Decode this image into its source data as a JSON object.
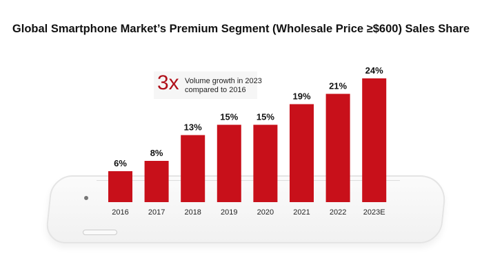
{
  "chart_data": {
    "type": "bar",
    "title": "Global Smartphone Market’s Premium Segment (Wholesale Price ≥$600) Sales Share",
    "categories": [
      "2016",
      "2017",
      "2018",
      "2019",
      "2020",
      "2021",
      "2022",
      "2023E"
    ],
    "values": [
      6,
      8,
      13,
      15,
      15,
      19,
      21,
      24
    ],
    "data_labels": [
      "6%",
      "8%",
      "13%",
      "15%",
      "15%",
      "19%",
      "21%",
      "24%"
    ],
    "unit": "%",
    "ylim": [
      0,
      24
    ],
    "grid": false,
    "bar_color": "#c8101a",
    "annotation": {
      "big": "3x",
      "text_line1": "Volume growth in 2023",
      "text_line2": "compared to 2016"
    }
  }
}
